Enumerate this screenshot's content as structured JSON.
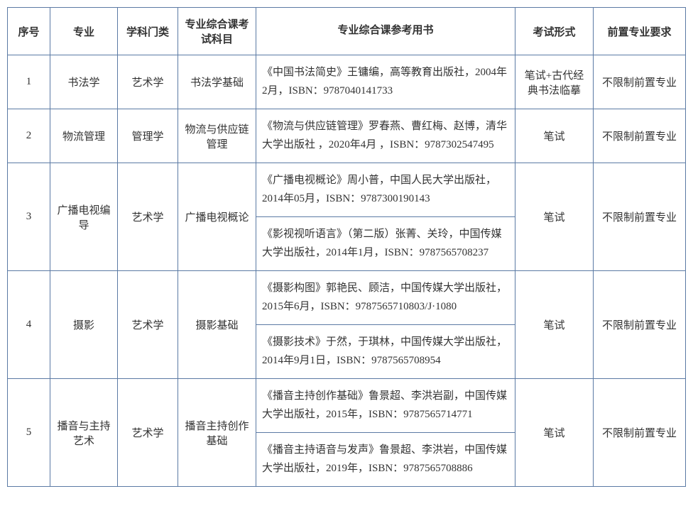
{
  "table": {
    "headers": {
      "idx": "序号",
      "major": "专业",
      "cat": "学科门类",
      "subj": "专业综合课考试科目",
      "ref": "专业综合课参考用书",
      "exam": "考试形式",
      "req": "前置专业要求"
    },
    "colors": {
      "border": "#5b7aa4",
      "text": "#333333",
      "background": "#ffffff"
    },
    "typography": {
      "font_family": "SimSun",
      "font_size_pt": 11,
      "line_height": 1.7
    },
    "rows": [
      {
        "idx": "1",
        "major": "书法学",
        "cat": "艺术学",
        "subj": "书法学基础",
        "refs": [
          "《中国书法简史》王镛编，高等教育出版社，2004年2月，ISBN：9787040141733"
        ],
        "exam": "笔试+古代经典书法临摹",
        "req": "不限制前置专业"
      },
      {
        "idx": "2",
        "major": "物流管理",
        "cat": "管理学",
        "subj": "物流与供应链管理",
        "refs": [
          "《物流与供应链管理》罗春燕、曹红梅、赵博，清华大学出版社 ，2020年4月 ，ISBN：9787302547495"
        ],
        "exam": "笔试",
        "req": "不限制前置专业"
      },
      {
        "idx": "3",
        "major": "广播电视编导",
        "cat": "艺术学",
        "subj": "广播电视概论",
        "refs": [
          "《广播电视概论》周小普，中国人民大学出版社，2014年05月，ISBN：9787300190143",
          "《影视视听语言》（第二版）张菁、关玲，中国传媒大学出版社，2014年1月，ISBN：9787565708237"
        ],
        "exam": "笔试",
        "req": "不限制前置专业"
      },
      {
        "idx": "4",
        "major": "摄影",
        "cat": "艺术学",
        "subj": "摄影基础",
        "refs": [
          "《摄影构图》郭艳民、顾洁，中国传媒大学出版社，2015年6月，ISBN：9787565710803/J·1080",
          "《摄影技术》于然，于琪林，中国传媒大学出版社，2014年9月1日，ISBN：9787565708954"
        ],
        "exam": "笔试",
        "req": "不限制前置专业"
      },
      {
        "idx": "5",
        "major": "播音与主持艺术",
        "cat": "艺术学",
        "subj": "播音主持创作基础",
        "refs": [
          "《播音主持创作基础》鲁景超、李洪岩副，中国传媒大学出版社，2015年，ISBN：9787565714771",
          "《播音主持语音与发声》鲁景超、李洪岩，中国传媒大学出版社，2019年，ISBN：9787565708886"
        ],
        "exam": "笔试",
        "req": "不限制前置专业"
      }
    ]
  }
}
